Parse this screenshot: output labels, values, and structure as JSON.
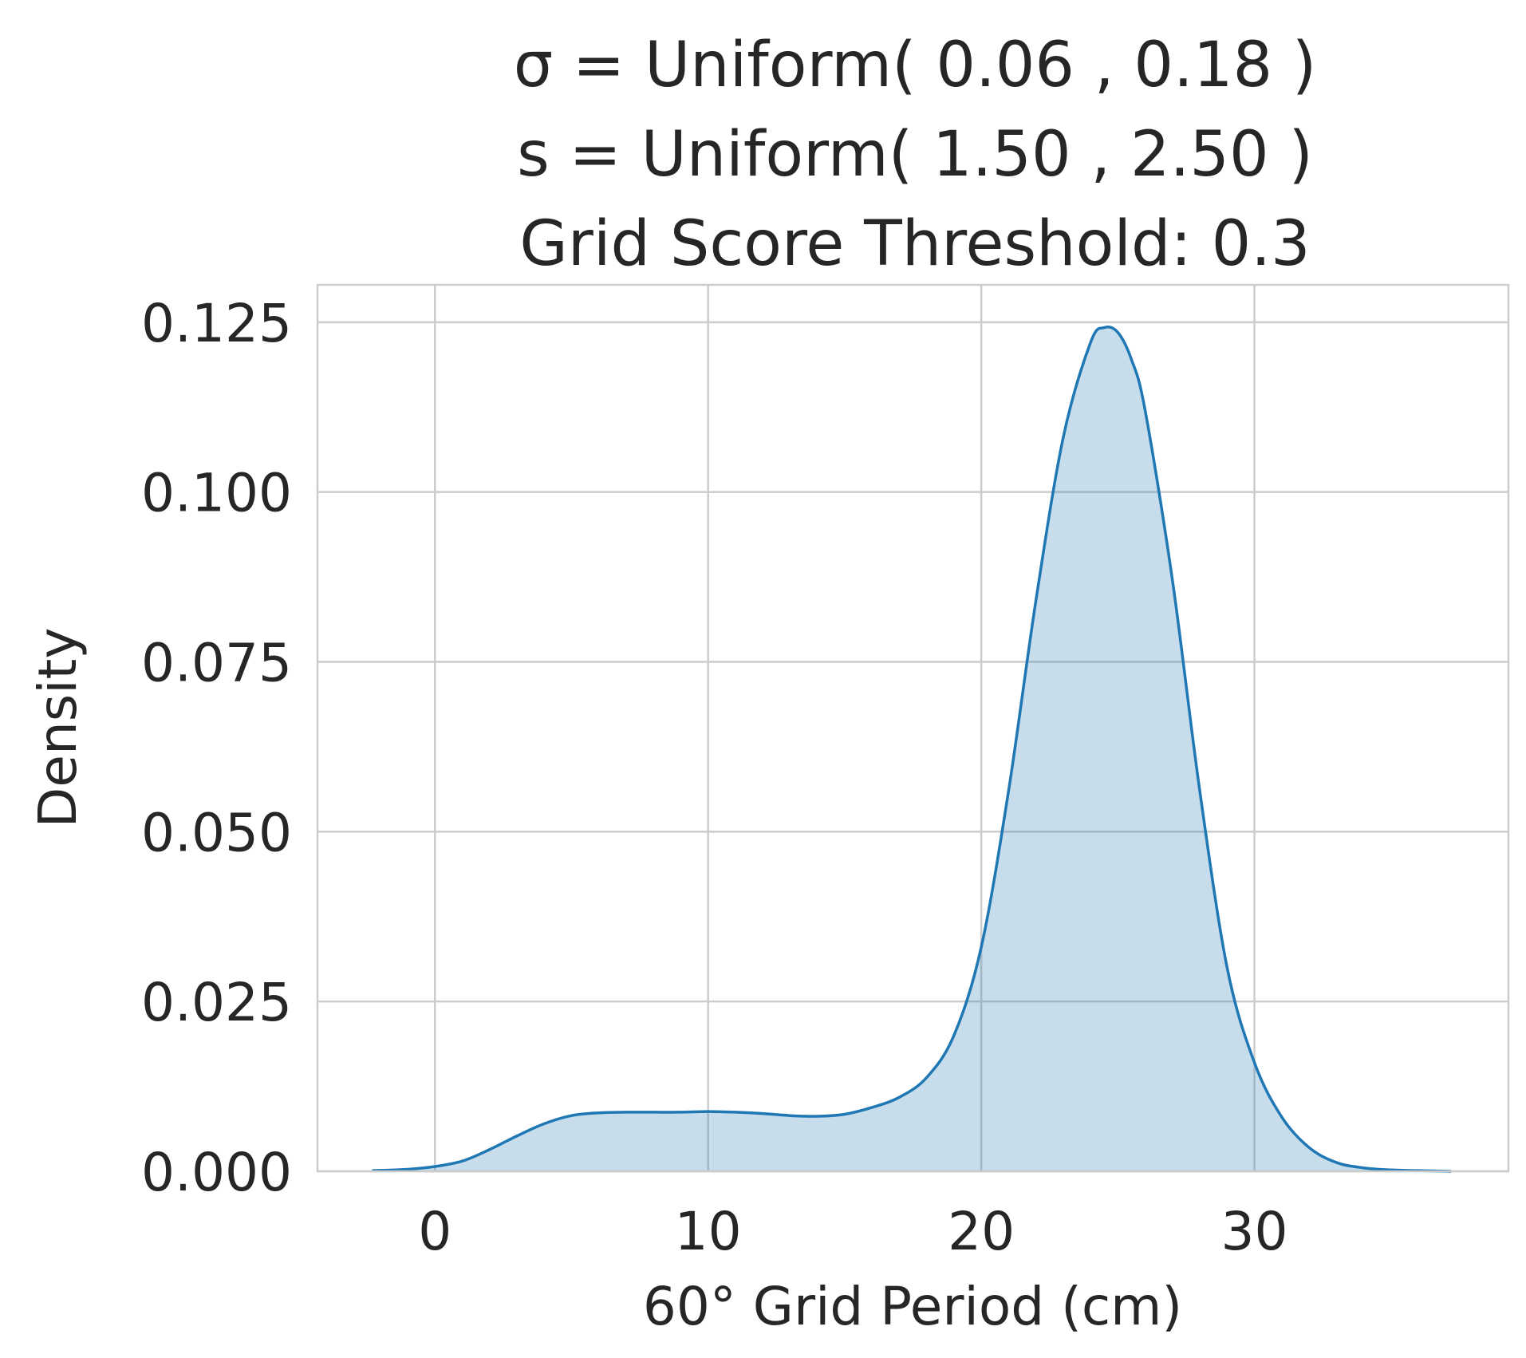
{
  "chart_data": {
    "type": "area",
    "title_lines": [
      "σ = Uniform( 0.06 , 0.18 )",
      "s = Uniform( 1.50 , 2.50 )",
      "Grid Score Threshold: 0.3"
    ],
    "xlabel": "60° Grid Period (cm)",
    "ylabel": "Density",
    "xlim": [
      -4.3,
      39.3
    ],
    "ylim": [
      0,
      0.1305
    ],
    "x_ticks": [
      0,
      10,
      20,
      30
    ],
    "x_tick_labels": [
      "0",
      "10",
      "20",
      "30"
    ],
    "y_ticks": [
      0,
      0.025,
      0.05,
      0.075,
      0.1,
      0.125
    ],
    "y_tick_labels": [
      "0.000",
      "0.025",
      "0.050",
      "0.075",
      "0.100",
      "0.125"
    ],
    "grid": true,
    "legend": "none",
    "colors": {
      "line": "#1f77b4",
      "fill": "#1f77b4",
      "fill_opacity": 0.25,
      "text": "#262626",
      "grid": "#cccccc"
    },
    "series": [
      {
        "x": [
          -2.3,
          -1,
          0,
          1,
          2,
          3,
          4,
          5,
          6,
          7,
          8,
          9,
          10,
          11,
          12,
          13,
          14,
          15,
          16,
          17,
          18,
          19,
          20,
          21,
          22,
          23,
          24,
          24.5,
          25,
          25.5,
          26,
          27,
          28,
          29,
          30,
          31,
          32,
          33,
          34,
          35,
          36,
          37.2
        ],
        "y": [
          0.0001,
          0.0003,
          0.0007,
          0.0015,
          0.0032,
          0.0052,
          0.007,
          0.0082,
          0.0086,
          0.0087,
          0.0087,
          0.0087,
          0.0088,
          0.0087,
          0.0085,
          0.0082,
          0.0081,
          0.0084,
          0.0094,
          0.0109,
          0.0138,
          0.02,
          0.033,
          0.056,
          0.084,
          0.108,
          0.122,
          0.1242,
          0.1235,
          0.1195,
          0.112,
          0.087,
          0.056,
          0.03,
          0.016,
          0.008,
          0.0035,
          0.0013,
          0.0005,
          0.0002,
          0.0001,
          0.0
        ]
      }
    ]
  }
}
